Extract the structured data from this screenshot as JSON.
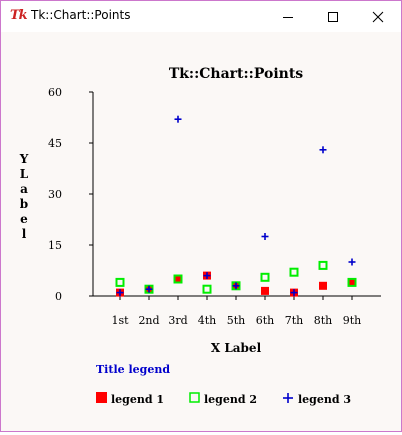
{
  "window": {
    "logo_text": "Tk",
    "title": "Tk::Chart::Points",
    "controls": {
      "minimize_icon": "minimize-icon",
      "maximize_icon": "maximize-icon",
      "close_icon": "close-icon"
    }
  },
  "chart_data": {
    "type": "scatter",
    "title": "Tk::Chart::Points",
    "xlabel": "X Label",
    "ylabel": "Y Label",
    "categories": [
      "1st",
      "2nd",
      "3rd",
      "4th",
      "5th",
      "6th",
      "7th",
      "8th",
      "9th"
    ],
    "ylim": [
      0,
      60
    ],
    "yticks": [
      0,
      15,
      30,
      45,
      60
    ],
    "grid": false,
    "legend_title": "Title legend",
    "legend_placement": "bottom-left",
    "series": [
      {
        "name": "legend 1",
        "marker": "filled-square",
        "color": "#ff0000",
        "values": [
          1,
          2,
          5,
          6,
          3,
          1.5,
          1,
          3,
          4
        ]
      },
      {
        "name": "legend 2",
        "marker": "open-square",
        "color": "#00ee00",
        "values": [
          4,
          2,
          5,
          2,
          3,
          5.5,
          7,
          9,
          4
        ]
      },
      {
        "name": "legend 3",
        "marker": "plus",
        "color": "#0000cc",
        "values": [
          1,
          2,
          52,
          6,
          3,
          17.5,
          1,
          43,
          10
        ]
      }
    ],
    "colors": {
      "title": "#000000",
      "axis": "#000000",
      "legend_title": "#0000cc"
    }
  }
}
